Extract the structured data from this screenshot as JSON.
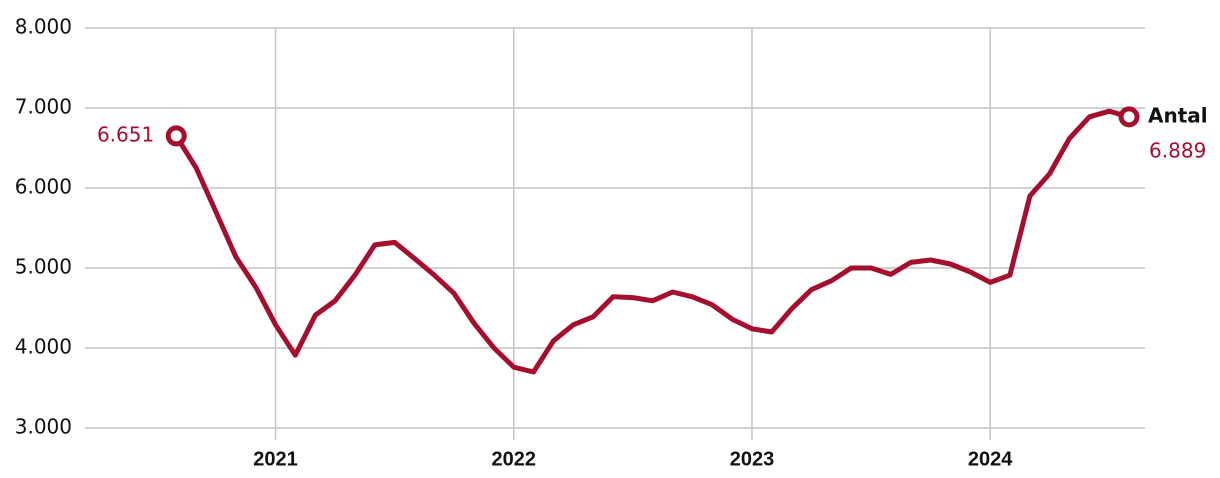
{
  "chart_data": {
    "type": "line",
    "x": [
      2020.583,
      2020.667,
      2020.75,
      2020.833,
      2020.917,
      2021.0,
      2021.083,
      2021.167,
      2021.25,
      2021.333,
      2021.417,
      2021.5,
      2021.583,
      2021.667,
      2021.75,
      2021.833,
      2021.917,
      2022.0,
      2022.083,
      2022.167,
      2022.25,
      2022.333,
      2022.417,
      2022.5,
      2022.583,
      2022.667,
      2022.75,
      2022.833,
      2022.917,
      2023.0,
      2023.083,
      2023.167,
      2023.25,
      2023.333,
      2023.417,
      2023.5,
      2023.583,
      2023.667,
      2023.75,
      2023.833,
      2023.917,
      2024.0,
      2024.083,
      2024.167,
      2024.25,
      2024.333,
      2024.417,
      2024.5,
      2024.583
    ],
    "series": [
      {
        "name": "Antal",
        "color": "#a50f2d",
        "values": [
          6651,
          6250,
          5700,
          5140,
          4760,
          4290,
          3910,
          4410,
          4590,
          4910,
          5290,
          5320,
          5120,
          4910,
          4680,
          4310,
          4000,
          3760,
          3700,
          4090,
          4290,
          4390,
          4640,
          4630,
          4590,
          4700,
          4640,
          4540,
          4360,
          4240,
          4200,
          4490,
          4730,
          4840,
          5000,
          5000,
          4920,
          5070,
          5100,
          5050,
          4950,
          4820,
          4910,
          5900,
          6180,
          6620,
          6890,
          6960,
          6889
        ],
        "value_labels": [
          "6.651",
          null,
          null,
          null,
          null,
          null,
          null,
          null,
          null,
          null,
          null,
          null,
          null,
          null,
          null,
          null,
          null,
          null,
          null,
          null,
          null,
          null,
          null,
          null,
          null,
          null,
          null,
          null,
          null,
          null,
          null,
          null,
          null,
          null,
          null,
          null,
          null,
          null,
          null,
          null,
          null,
          null,
          null,
          null,
          null,
          null,
          null,
          null,
          "6.889"
        ]
      }
    ],
    "xlim": [
      2020.2,
      2024.65
    ],
    "xticks": [
      2021,
      2022,
      2023,
      2024
    ],
    "ylim": [
      3000,
      8000
    ],
    "yticks": [
      {
        "value": 3000,
        "label": "3.000"
      },
      {
        "value": 4000,
        "label": "4.000"
      },
      {
        "value": 5000,
        "label": "5.000"
      },
      {
        "value": 6000,
        "label": "6.000"
      },
      {
        "value": 7000,
        "label": "7.000"
      },
      {
        "value": 8000,
        "label": "8.000"
      }
    ],
    "grid": true
  }
}
